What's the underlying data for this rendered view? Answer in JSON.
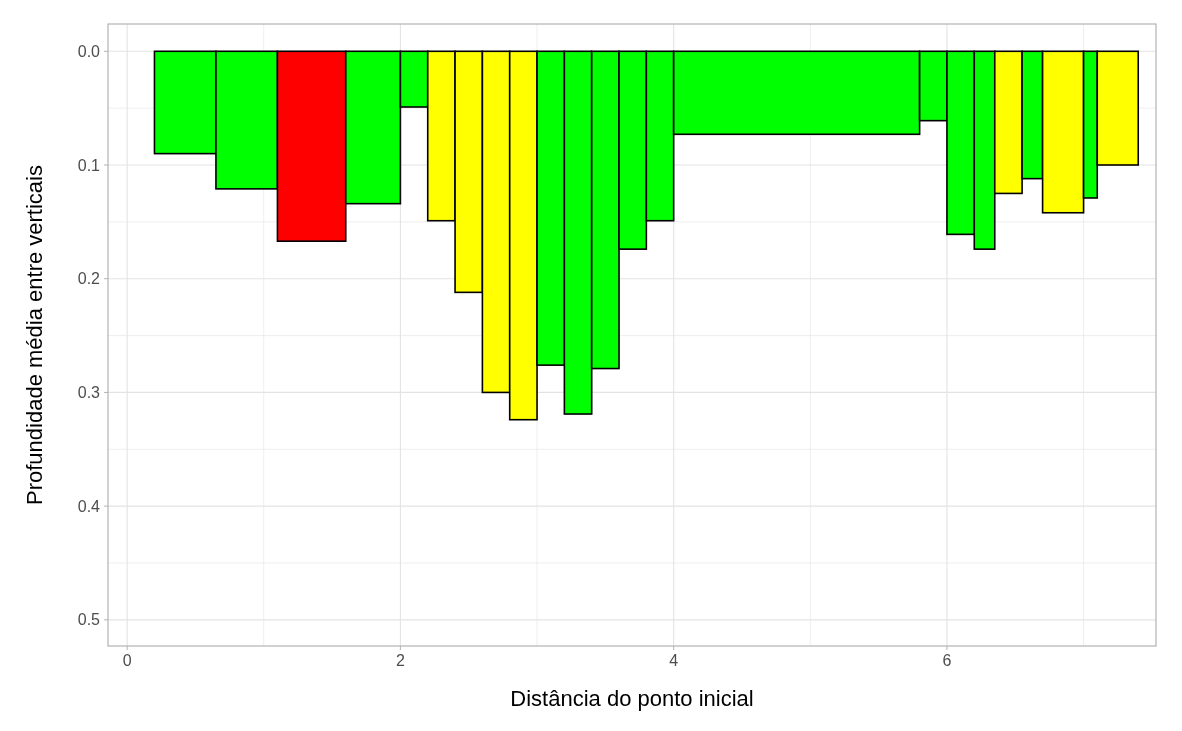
{
  "chart_data": {
    "type": "histogram",
    "xlabel": "Distância do ponto inicial",
    "ylabel": "Profundidade média entre verticais",
    "bins": [
      0.2,
      0.65,
      1.1,
      1.6,
      2.0,
      2.2,
      2.4,
      2.6,
      2.8,
      3.0,
      3.2,
      3.4,
      3.6,
      3.8,
      4.0,
      5.8,
      6.0,
      6.2,
      6.35,
      6.55,
      6.7,
      7.0,
      7.1,
      7.4
    ],
    "values": [
      0.09,
      0.121,
      0.167,
      0.134,
      0.049,
      0.149,
      0.212,
      0.3,
      0.324,
      0.276,
      0.319,
      0.279,
      0.174,
      0.149,
      0.073,
      0.061,
      0.161,
      0.174,
      0.125,
      0.112,
      0.142,
      0.129,
      0.1
    ],
    "colors": [
      "#00ff00",
      "#00ff00",
      "#ff0000",
      "#00ff00",
      "#00ff00",
      "#ffff00",
      "#ffff00",
      "#ffff00",
      "#ffff00",
      "#00ff00",
      "#00ff00",
      "#00ff00",
      "#00ff00",
      "#00ff00",
      "#00ff00",
      "#00ff00",
      "#00ff00",
      "#00ff00",
      "#ffff00",
      "#00ff00",
      "#ffff00",
      "#00ff00",
      "#ffff00"
    ],
    "xlim": [
      -0.14,
      7.53
    ],
    "ylim": [
      0.523,
      -0.024
    ],
    "xticks": [
      0,
      {
        "value": 1,
        "label": null
      },
      2,
      {
        "value": 3,
        "label": null
      },
      4,
      {
        "value": 5,
        "label": null
      },
      6,
      {
        "value": 7,
        "label": null
      }
    ],
    "yticks": [
      {
        "value": 0,
        "label": "0.0"
      },
      {
        "value": 0.05,
        "label": null
      },
      0.1,
      {
        "value": 0.15,
        "label": null
      },
      0.2,
      {
        "value": 0.25,
        "label": null
      },
      0.3,
      {
        "value": 0.35,
        "label": null
      },
      0.4,
      {
        "value": 0.45,
        "label": null
      },
      0.5
    ],
    "grid": true
  }
}
